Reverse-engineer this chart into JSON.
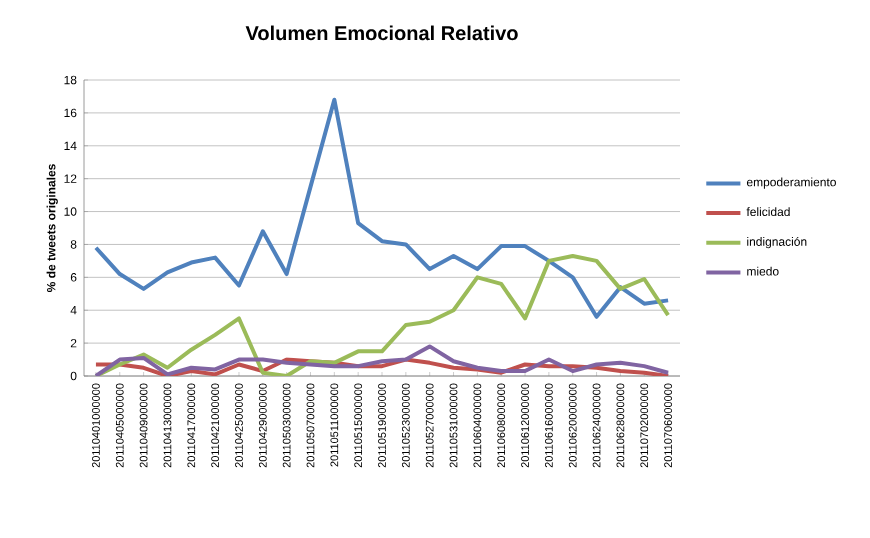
{
  "chart_data": {
    "type": "line",
    "title": "Volumen Emocional Relativo",
    "ylabel": "% de tweets originales",
    "categories": [
      "20110401000000",
      "20110405000000",
      "20110409000000",
      "20110413000000",
      "20110417000000",
      "20110421000000",
      "20110425000000",
      "20110429000000",
      "20110503000000",
      "20110507000000",
      "20110511000000",
      "20110515000000",
      "20110519000000",
      "20110523000000",
      "20110527000000",
      "20110531000000",
      "20110604000000",
      "20110608000000",
      "20110612000000",
      "20110616000000",
      "20110620000000",
      "20110624000000",
      "20110628000000",
      "20110702000000",
      "20110706000000"
    ],
    "series": [
      {
        "name": "empoderamiento",
        "color": "#4f81bd",
        "values": [
          7.8,
          6.2,
          5.3,
          6.3,
          6.9,
          7.2,
          5.5,
          8.8,
          6.2,
          11.5,
          16.8,
          9.3,
          8.2,
          8.0,
          6.5,
          7.3,
          6.5,
          7.9,
          7.9,
          7.0,
          6.0,
          3.6,
          5.4,
          4.4,
          4.6
        ]
      },
      {
        "name": "felicidad",
        "color": "#c0504d",
        "values": [
          0.7,
          0.7,
          0.5,
          0.0,
          0.3,
          0.1,
          0.7,
          0.3,
          1.0,
          0.9,
          0.8,
          0.6,
          0.6,
          1.0,
          0.8,
          0.5,
          0.4,
          0.2,
          0.7,
          0.6,
          0.6,
          0.5,
          0.3,
          0.2,
          0.0
        ]
      },
      {
        "name": "indignación",
        "color": "#9bbb59",
        "values": [
          0.0,
          0.7,
          1.3,
          0.5,
          1.6,
          2.5,
          3.5,
          0.2,
          0.0,
          0.9,
          0.8,
          1.5,
          1.5,
          3.1,
          3.3,
          4.0,
          6.0,
          5.6,
          3.5,
          7.0,
          7.3,
          7.0,
          5.3,
          5.9,
          3.7
        ]
      },
      {
        "name": "miedo",
        "color": "#8064a2",
        "values": [
          0.0,
          1.0,
          1.1,
          0.1,
          0.5,
          0.4,
          1.0,
          1.0,
          0.8,
          0.7,
          0.6,
          0.6,
          0.9,
          1.0,
          1.8,
          0.9,
          0.5,
          0.3,
          0.3,
          1.0,
          0.3,
          0.7,
          0.8,
          0.6,
          0.2
        ]
      }
    ],
    "ylim": [
      0,
      18
    ],
    "yticks": [
      0,
      2,
      4,
      6,
      8,
      10,
      12,
      14,
      16,
      18
    ],
    "grid": "y",
    "legend": "right",
    "marker": "none",
    "line_style": "solid"
  }
}
